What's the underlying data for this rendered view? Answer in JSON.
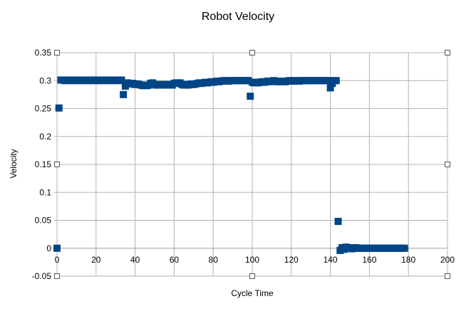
{
  "chart_data": {
    "type": "scatter",
    "title": "Robot Velocity",
    "xlabel": "Cycle Time",
    "ylabel": "Velocity",
    "xlim": [
      0,
      200
    ],
    "ylim": [
      -0.05,
      0.35
    ],
    "x_ticks": [
      "0",
      "20",
      "40",
      "60",
      "80",
      "100",
      "120",
      "140",
      "160",
      "180",
      "200"
    ],
    "y_ticks": [
      "0.35",
      "0.3",
      "0.25",
      "0.2",
      "0.15",
      "0.1",
      "0.05",
      "0",
      "-0.05"
    ],
    "grid": true,
    "legend": "none",
    "marker": "square",
    "marker_color": "#004586",
    "series": [
      {
        "points": [
          [
            0,
            0
          ],
          [
            1,
            0.251
          ],
          [
            2,
            0.301
          ],
          [
            3,
            0.301
          ],
          [
            4,
            0.3
          ],
          [
            5,
            0.301
          ],
          [
            6,
            0.3
          ],
          [
            7,
            0.301
          ],
          [
            8,
            0.3
          ],
          [
            9,
            0.301
          ],
          [
            10,
            0.3
          ],
          [
            11,
            0.301
          ],
          [
            12,
            0.3
          ],
          [
            13,
            0.301
          ],
          [
            14,
            0.3
          ],
          [
            15,
            0.301
          ],
          [
            16,
            0.3
          ],
          [
            17,
            0.301
          ],
          [
            18,
            0.3
          ],
          [
            19,
            0.301
          ],
          [
            20,
            0.3
          ],
          [
            21,
            0.301
          ],
          [
            22,
            0.3
          ],
          [
            23,
            0.301
          ],
          [
            24,
            0.3
          ],
          [
            25,
            0.301
          ],
          [
            26,
            0.3
          ],
          [
            27,
            0.301
          ],
          [
            28,
            0.3
          ],
          [
            29,
            0.301
          ],
          [
            30,
            0.3
          ],
          [
            31,
            0.301
          ],
          [
            32,
            0.3
          ],
          [
            33,
            0.301
          ],
          [
            34,
            0.275
          ],
          [
            35,
            0.29
          ],
          [
            36,
            0.296
          ],
          [
            37,
            0.295
          ],
          [
            38,
            0.294
          ],
          [
            39,
            0.295
          ],
          [
            40,
            0.293
          ],
          [
            41,
            0.294
          ],
          [
            42,
            0.293
          ],
          [
            43,
            0.292
          ],
          [
            44,
            0.291
          ],
          [
            45,
            0.292
          ],
          [
            46,
            0.291
          ],
          [
            47,
            0.292
          ],
          [
            48,
            0.295
          ],
          [
            49,
            0.296
          ],
          [
            50,
            0.293
          ],
          [
            51,
            0.292
          ],
          [
            52,
            0.293
          ],
          [
            53,
            0.292
          ],
          [
            54,
            0.293
          ],
          [
            55,
            0.292
          ],
          [
            56,
            0.293
          ],
          [
            57,
            0.292
          ],
          [
            58,
            0.293
          ],
          [
            59,
            0.292
          ],
          [
            60,
            0.295
          ],
          [
            61,
            0.296
          ],
          [
            62,
            0.295
          ],
          [
            63,
            0.296
          ],
          [
            64,
            0.293
          ],
          [
            65,
            0.292
          ],
          [
            66,
            0.293
          ],
          [
            67,
            0.292
          ],
          [
            68,
            0.293
          ],
          [
            69,
            0.294
          ],
          [
            70,
            0.293
          ],
          [
            71,
            0.294
          ],
          [
            72,
            0.295
          ],
          [
            73,
            0.296
          ],
          [
            74,
            0.295
          ],
          [
            75,
            0.296
          ],
          [
            76,
            0.297
          ],
          [
            77,
            0.296
          ],
          [
            78,
            0.297
          ],
          [
            79,
            0.298
          ],
          [
            80,
            0.297
          ],
          [
            81,
            0.298
          ],
          [
            82,
            0.299
          ],
          [
            83,
            0.298
          ],
          [
            84,
            0.299
          ],
          [
            85,
            0.3
          ],
          [
            86,
            0.299
          ],
          [
            87,
            0.3
          ],
          [
            88,
            0.299
          ],
          [
            89,
            0.3
          ],
          [
            90,
            0.3
          ],
          [
            91,
            0.3
          ],
          [
            92,
            0.3
          ],
          [
            93,
            0.3
          ],
          [
            94,
            0.3
          ],
          [
            95,
            0.3
          ],
          [
            96,
            0.3
          ],
          [
            97,
            0.3
          ],
          [
            98,
            0.3
          ],
          [
            99,
            0.272
          ],
          [
            100,
            0.297
          ],
          [
            101,
            0.296
          ],
          [
            102,
            0.297
          ],
          [
            103,
            0.296
          ],
          [
            104,
            0.297
          ],
          [
            105,
            0.298
          ],
          [
            106,
            0.297
          ],
          [
            107,
            0.298
          ],
          [
            108,
            0.299
          ],
          [
            109,
            0.298
          ],
          [
            110,
            0.299
          ],
          [
            111,
            0.3
          ],
          [
            112,
            0.299
          ],
          [
            113,
            0.298
          ],
          [
            114,
            0.299
          ],
          [
            115,
            0.298
          ],
          [
            116,
            0.299
          ],
          [
            117,
            0.298
          ],
          [
            118,
            0.299
          ],
          [
            119,
            0.3
          ],
          [
            120,
            0.299
          ],
          [
            121,
            0.3
          ],
          [
            122,
            0.299
          ],
          [
            123,
            0.3
          ],
          [
            124,
            0.299
          ],
          [
            125,
            0.3
          ],
          [
            126,
            0.3
          ],
          [
            127,
            0.3
          ],
          [
            128,
            0.3
          ],
          [
            129,
            0.3
          ],
          [
            130,
            0.3
          ],
          [
            131,
            0.3
          ],
          [
            132,
            0.3
          ],
          [
            133,
            0.3
          ],
          [
            134,
            0.3
          ],
          [
            135,
            0.3
          ],
          [
            136,
            0.3
          ],
          [
            137,
            0.3
          ],
          [
            138,
            0.3
          ],
          [
            139,
            0.3
          ],
          [
            140,
            0.287
          ],
          [
            141,
            0.295
          ],
          [
            142,
            0.3
          ],
          [
            143,
            0.3
          ],
          [
            144,
            0.048
          ],
          [
            145,
            -0.004
          ],
          [
            146,
            0.001
          ],
          [
            147,
            -0.002
          ],
          [
            148,
            0.002
          ],
          [
            149,
            0.0
          ],
          [
            150,
            0.001
          ],
          [
            151,
            -0.001
          ],
          [
            152,
            0.0
          ],
          [
            153,
            0.001
          ],
          [
            154,
            0.0
          ],
          [
            155,
            0.0
          ],
          [
            156,
            0.0
          ],
          [
            157,
            0.0
          ],
          [
            158,
            0.0
          ],
          [
            159,
            0.0
          ],
          [
            160,
            0.0
          ],
          [
            161,
            0.0
          ],
          [
            162,
            0.0
          ],
          [
            163,
            0.0
          ],
          [
            164,
            0.0
          ],
          [
            165,
            0.0
          ],
          [
            166,
            0.0
          ],
          [
            167,
            0.0
          ],
          [
            168,
            0.0
          ],
          [
            169,
            0.0
          ],
          [
            170,
            0.0
          ],
          [
            171,
            0.0
          ],
          [
            172,
            0.0
          ],
          [
            173,
            0.0
          ],
          [
            174,
            0.0
          ],
          [
            175,
            0.0
          ],
          [
            176,
            0.0
          ],
          [
            177,
            0.0
          ],
          [
            178,
            0.0
          ]
        ]
      }
    ]
  }
}
